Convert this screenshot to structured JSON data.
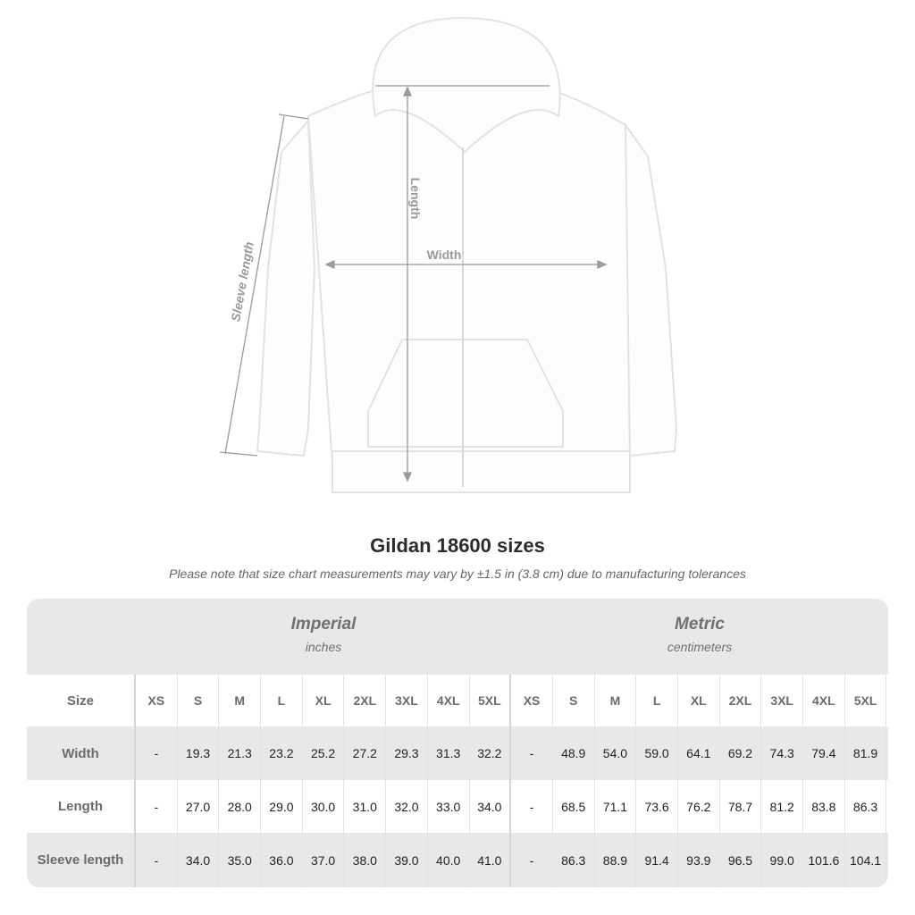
{
  "illustration": {
    "labels": {
      "length": "Length",
      "width": "Width",
      "sleeve": "Sleeve length"
    }
  },
  "title": "Gildan 18600 sizes",
  "note": "Please note that size chart measurements may vary by ±1.5 in (3.8 cm) due to manufacturing tolerances",
  "groups": {
    "imperial": {
      "name": "Imperial",
      "unit": "inches"
    },
    "metric": {
      "name": "Metric",
      "unit": "centimeters"
    }
  },
  "table": {
    "size_label": "Size",
    "sizes": [
      "XS",
      "S",
      "M",
      "L",
      "XL",
      "2XL",
      "3XL",
      "4XL",
      "5XL"
    ],
    "rows": [
      {
        "label": "Width",
        "imperial": [
          "-",
          "19.3",
          "21.3",
          "23.2",
          "25.2",
          "27.2",
          "29.3",
          "31.3",
          "32.2"
        ],
        "metric": [
          "-",
          "48.9",
          "54.0",
          "59.0",
          "64.1",
          "69.2",
          "74.3",
          "79.4",
          "81.9"
        ]
      },
      {
        "label": "Length",
        "imperial": [
          "-",
          "27.0",
          "28.0",
          "29.0",
          "30.0",
          "31.0",
          "32.0",
          "33.0",
          "34.0"
        ],
        "metric": [
          "-",
          "68.5",
          "71.1",
          "73.6",
          "76.2",
          "78.7",
          "81.2",
          "83.8",
          "86.3"
        ]
      },
      {
        "label": "Sleeve length",
        "imperial": [
          "-",
          "34.0",
          "35.0",
          "36.0",
          "37.0",
          "38.0",
          "39.0",
          "40.0",
          "41.0"
        ],
        "metric": [
          "-",
          "86.3",
          "88.9",
          "91.4",
          "93.9",
          "96.5",
          "99.0",
          "101.6",
          "104.1"
        ]
      }
    ]
  }
}
